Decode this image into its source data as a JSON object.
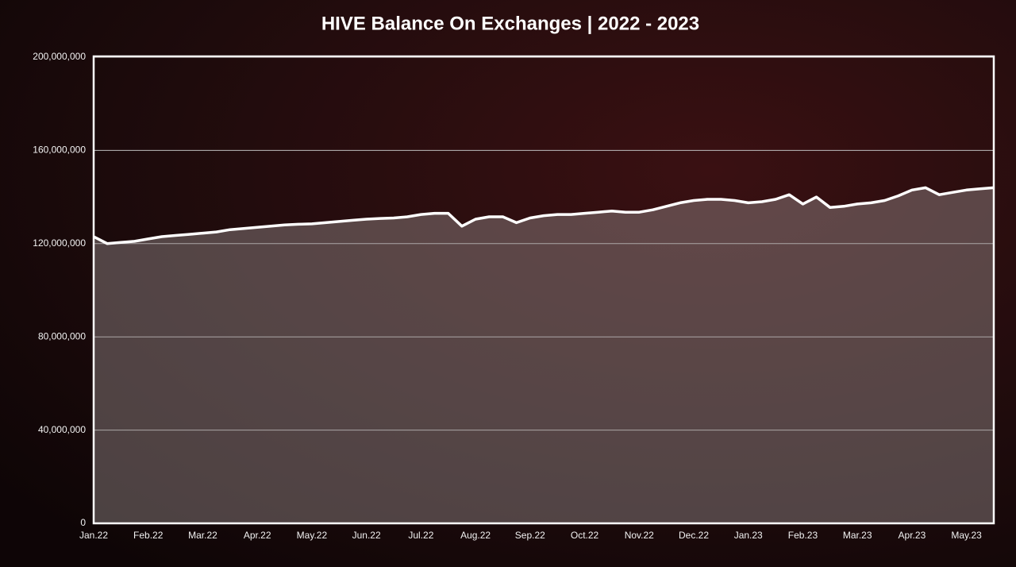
{
  "chart_data": {
    "type": "area",
    "title": "HIVE Balance On Exchanges | 2022 - 2023",
    "categories": [
      "Jan.22",
      null,
      null,
      null,
      "Feb.22",
      null,
      null,
      null,
      "Mar.22",
      null,
      null,
      null,
      "Apr.22",
      null,
      null,
      null,
      "May.22",
      null,
      null,
      null,
      "Jun.22",
      null,
      null,
      null,
      "Jul.22",
      null,
      null,
      null,
      "Aug.22",
      null,
      null,
      null,
      "Sep.22",
      null,
      null,
      null,
      "Oct.22",
      null,
      null,
      null,
      "Nov.22",
      null,
      null,
      null,
      "Dec.22",
      null,
      null,
      null,
      "Jan.23",
      null,
      null,
      null,
      "Feb.23",
      null,
      null,
      null,
      "Mar.23",
      null,
      null,
      null,
      "Apr.23",
      null,
      null,
      null,
      "May.23",
      null,
      null
    ],
    "series": [
      {
        "name": "HIVE Balance",
        "color": "#ffffff",
        "values": [
          123000000,
          120000000,
          120500000,
          121000000,
          122000000,
          123000000,
          123500000,
          124000000,
          124500000,
          125000000,
          126000000,
          126500000,
          127000000,
          127500000,
          128000000,
          128300000,
          128500000,
          129000000,
          129500000,
          130000000,
          130500000,
          130800000,
          131000000,
          131500000,
          132500000,
          133000000,
          133000000,
          127500000,
          130500000,
          131500000,
          131500000,
          129000000,
          131000000,
          132000000,
          132500000,
          132500000,
          133000000,
          133500000,
          134000000,
          133500000,
          133500000,
          134500000,
          136000000,
          137500000,
          138500000,
          139000000,
          139000000,
          138500000,
          137500000,
          138000000,
          139000000,
          141000000,
          137000000,
          140000000,
          135500000,
          136000000,
          137000000,
          137500000,
          138500000,
          140500000,
          143000000,
          144000000,
          141000000,
          142000000,
          143000000,
          143500000,
          144000000
        ]
      }
    ],
    "ylim": [
      0,
      200000000
    ],
    "yticks": [
      0,
      {
        "value": 40000000,
        "label": "40,000,000"
      },
      {
        "value": 80000000,
        "label": "80,000,000"
      },
      {
        "value": 120000000,
        "label": "120,000,000"
      },
      {
        "value": 160000000,
        "label": "160,000,000"
      },
      {
        "value": 200000000,
        "label": "200,000,000"
      }
    ],
    "grid": true
  }
}
